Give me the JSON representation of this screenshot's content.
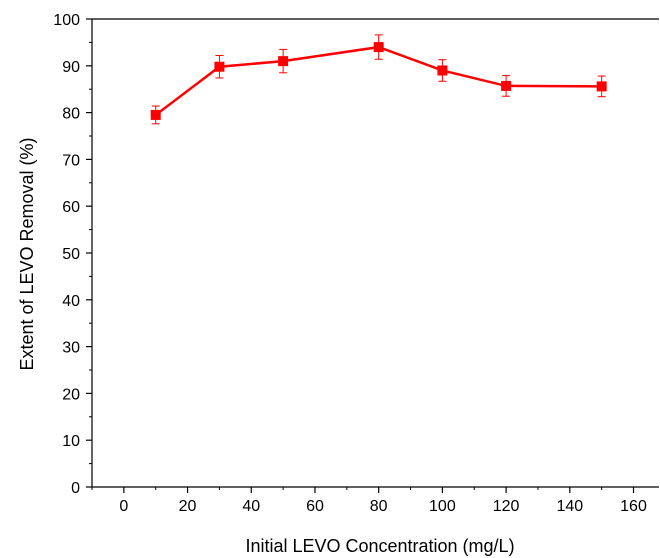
{
  "chart_data": {
    "type": "line",
    "title": "",
    "xlabel": "Initial LEVO Concentration (mg/L)",
    "ylabel": "Extent of LEVO Removal (%)",
    "xlim": [
      -10,
      168
    ],
    "ylim": [
      0,
      100
    ],
    "xticks": [
      0,
      20,
      40,
      60,
      80,
      100,
      120,
      140,
      160
    ],
    "yticks": [
      0,
      10,
      20,
      30,
      40,
      50,
      60,
      70,
      80,
      90,
      100
    ],
    "grid": false,
    "legend": "none",
    "series": [
      {
        "color": "#ff0000",
        "marker": "square",
        "x": [
          10,
          30,
          50,
          80,
          100,
          120,
          150
        ],
        "y": [
          79.5,
          89.8,
          91.0,
          94.0,
          89.0,
          85.7,
          85.6
        ],
        "error": [
          1.9,
          2.4,
          2.5,
          2.6,
          2.3,
          2.2,
          2.2
        ]
      }
    ]
  }
}
